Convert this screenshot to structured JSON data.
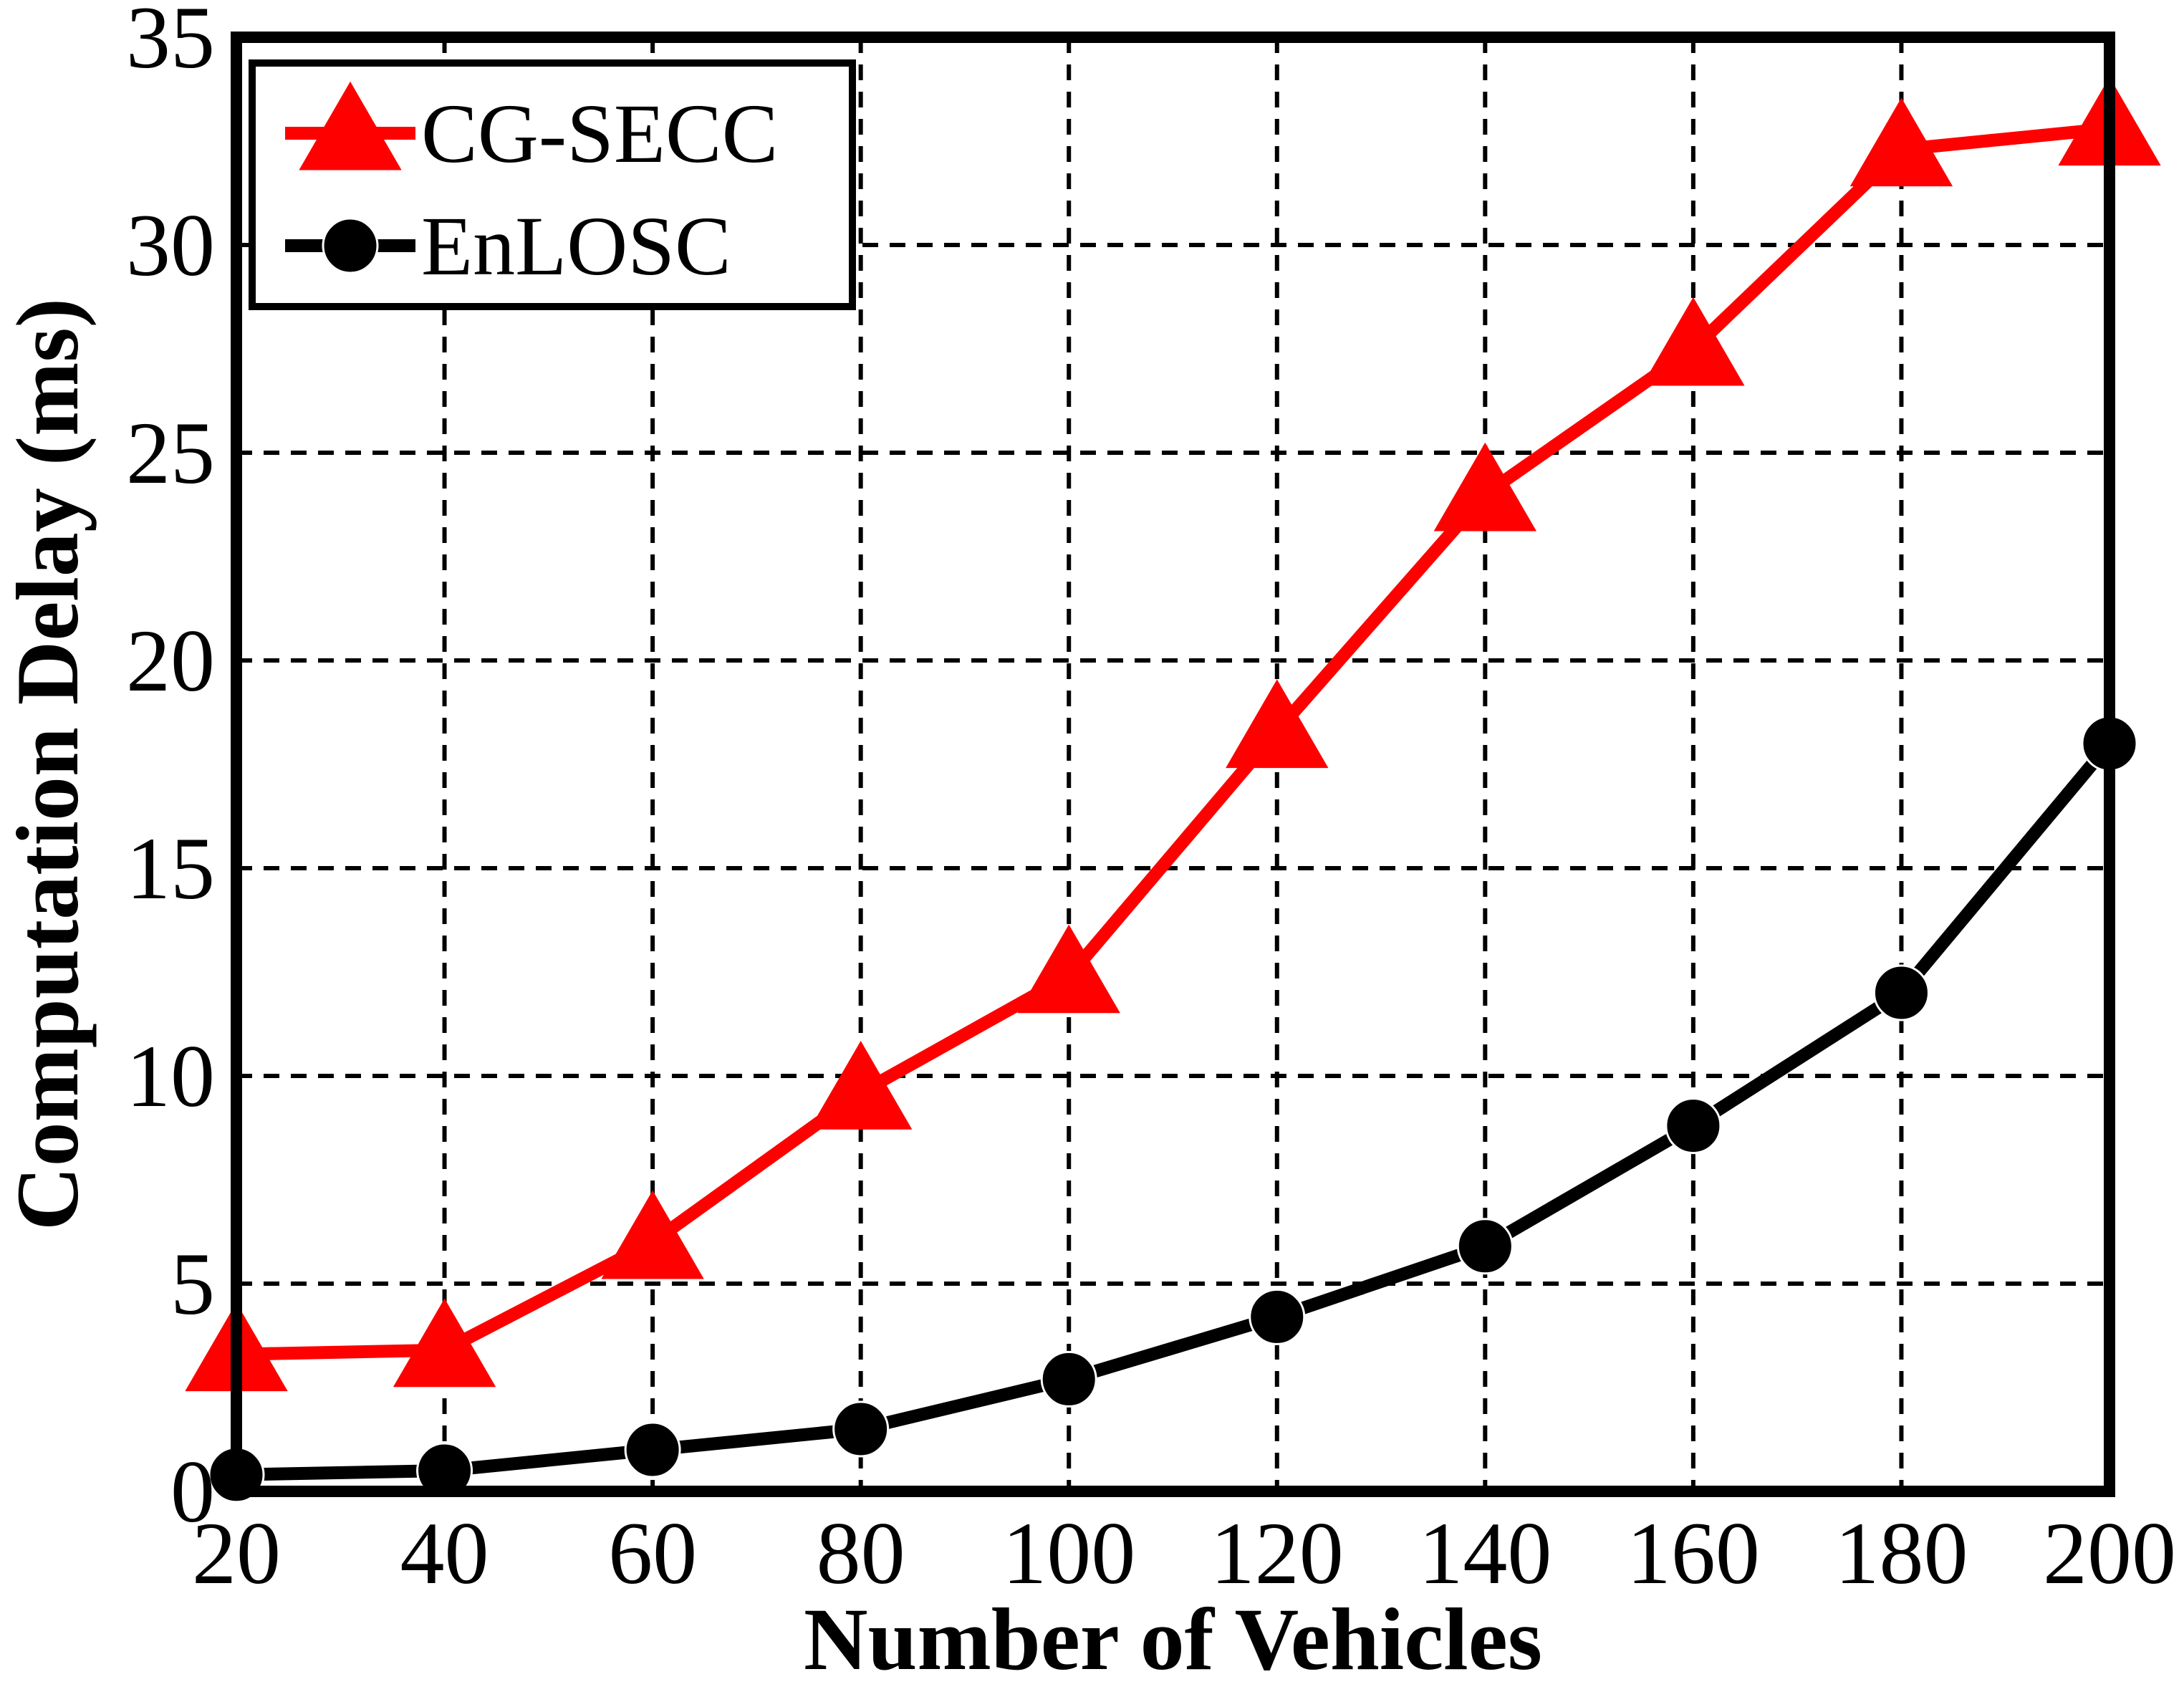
{
  "chart_data": {
    "type": "line",
    "title": "",
    "xlabel": "Number of Vehicles",
    "ylabel": "Computation Delay (ms)",
    "x": [
      20,
      40,
      60,
      80,
      100,
      120,
      140,
      160,
      180,
      200
    ],
    "xlim": [
      20,
      200
    ],
    "ylim": [
      0,
      35
    ],
    "xticks": [
      20,
      40,
      60,
      80,
      100,
      120,
      140,
      160,
      180,
      200
    ],
    "yticks": [
      0,
      5,
      10,
      15,
      20,
      25,
      30,
      35
    ],
    "grid": true,
    "legend_position": "top-left",
    "series": [
      {
        "name": "CG-SECC",
        "color": "#ff0000",
        "marker": "triangle",
        "values": [
          3.3,
          3.4,
          6.0,
          9.6,
          12.4,
          18.3,
          24.0,
          27.5,
          32.3,
          32.8
        ]
      },
      {
        "name": "EnLOSC",
        "color": "#000000",
        "marker": "circle",
        "values": [
          0.4,
          0.5,
          1.0,
          1.5,
          2.7,
          4.2,
          5.9,
          8.8,
          12.0,
          18.0
        ]
      }
    ]
  }
}
